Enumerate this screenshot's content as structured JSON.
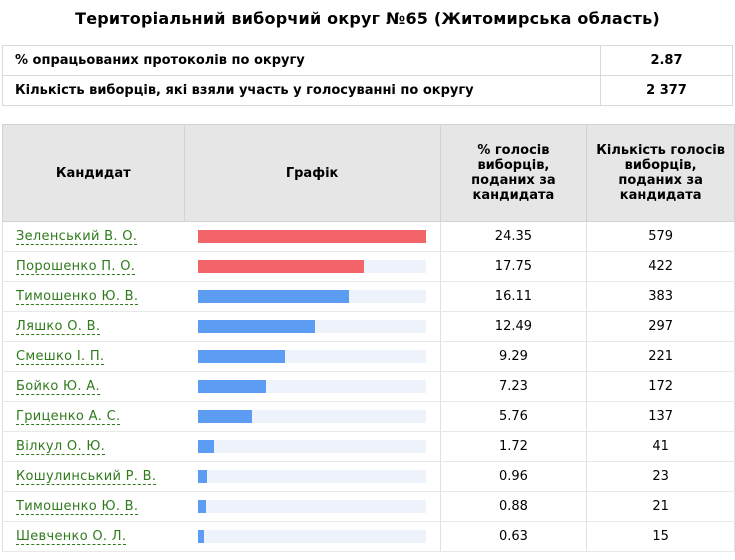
{
  "page": {
    "title": "Територіальний виборчий округ №65 (Житомирська область)"
  },
  "summary": [
    {
      "label": "% опрацьованих протоколів по округу",
      "value": "2.87"
    },
    {
      "label": "Кількість виборців, які взяли участь у голосуванні по округу",
      "value": "2 377"
    }
  ],
  "table": {
    "headers": {
      "candidate": "Кандидат",
      "chart": "Графік",
      "percent": "% голосів виборців, поданих за кандидата",
      "votes": "Кількість голосів виборців, поданих за кандидата"
    },
    "colors": {
      "leader_bar": "#f2636a",
      "other_bar": "#5c9cf2",
      "track": "#eef2fb"
    },
    "bar_scale_max_percent": 24.35,
    "rows": [
      {
        "name": "Зеленський В. О.",
        "percent": "24.35",
        "votes": "579",
        "bar_percent": 24.35,
        "leader": true
      },
      {
        "name": "Порошенко П. О.",
        "percent": "17.75",
        "votes": "422",
        "bar_percent": 17.75,
        "leader": true
      },
      {
        "name": "Тимошенко Ю. В.",
        "percent": "16.11",
        "votes": "383",
        "bar_percent": 16.11,
        "leader": false
      },
      {
        "name": "Ляшко О. В.",
        "percent": "12.49",
        "votes": "297",
        "bar_percent": 12.49,
        "leader": false
      },
      {
        "name": "Смешко І. П.",
        "percent": "9.29",
        "votes": "221",
        "bar_percent": 9.29,
        "leader": false
      },
      {
        "name": "Бойко Ю. А.",
        "percent": "7.23",
        "votes": "172",
        "bar_percent": 7.23,
        "leader": false
      },
      {
        "name": "Гриценко А. С.",
        "percent": "5.76",
        "votes": "137",
        "bar_percent": 5.76,
        "leader": false
      },
      {
        "name": "Вілкул О. Ю.",
        "percent": "1.72",
        "votes": "41",
        "bar_percent": 1.72,
        "leader": false
      },
      {
        "name": "Кошулинський Р. В.",
        "percent": "0.96",
        "votes": "23",
        "bar_percent": 0.96,
        "leader": false
      },
      {
        "name": "Тимошенко Ю. В.",
        "percent": "0.88",
        "votes": "21",
        "bar_percent": 0.88,
        "leader": false
      },
      {
        "name": "Шевченко О. Л.",
        "percent": "0.63",
        "votes": "15",
        "bar_percent": 0.63,
        "leader": false
      }
    ]
  }
}
